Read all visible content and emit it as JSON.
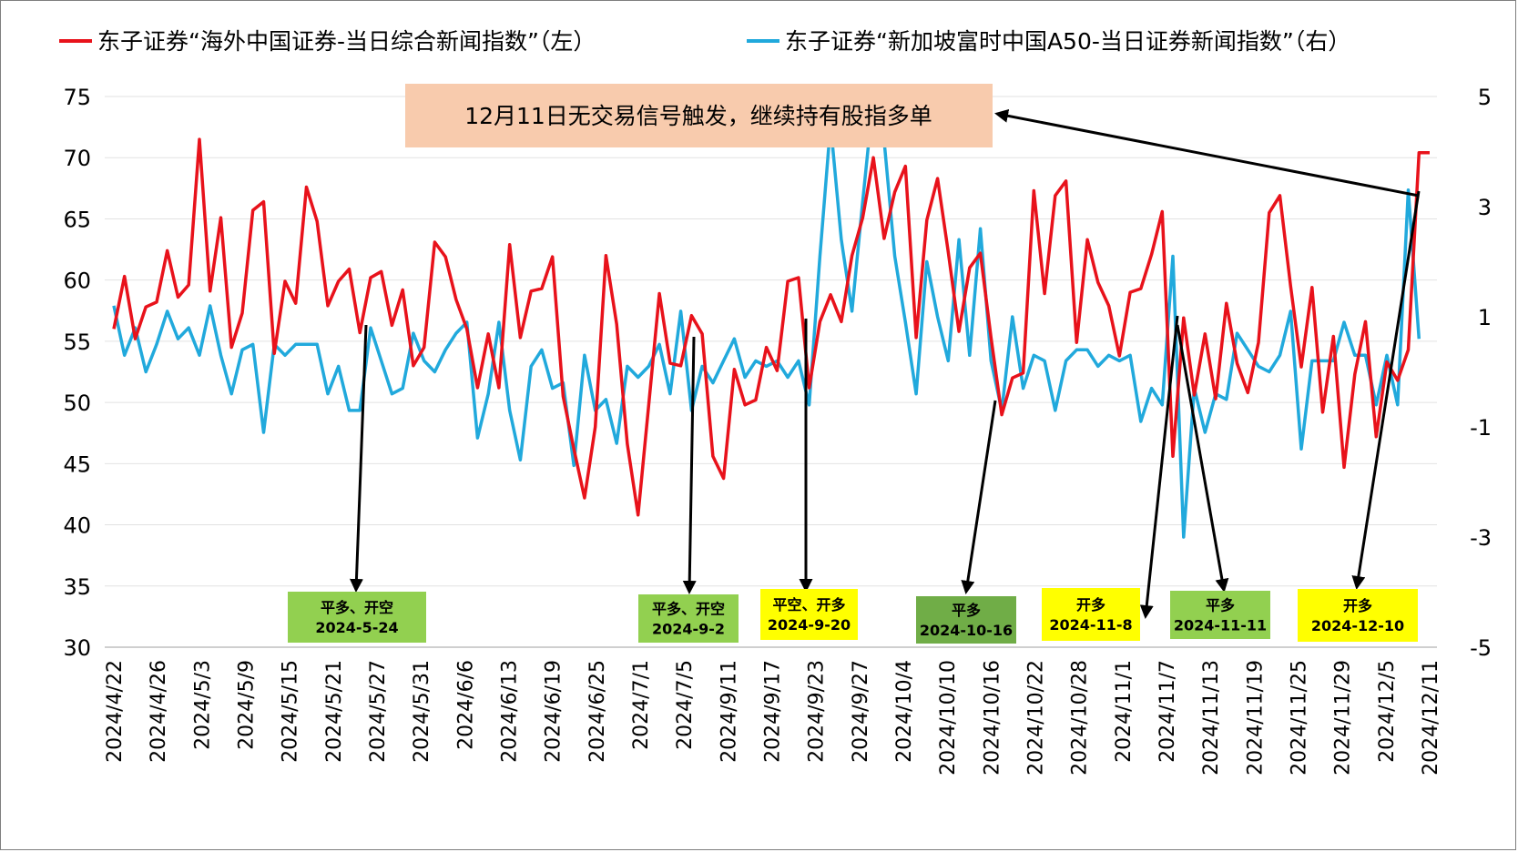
{
  "chart_data": {
    "type": "line",
    "legend": [
      {
        "name": "东子证券“海外中国证券-当日综合新闻指数”（左）",
        "color": "#e8121b",
        "axis": "left"
      },
      {
        "name": "东子证券“新加坡富时中国A50-当日证券新闻指数”（右）",
        "color": "#21a9dc",
        "axis": "right"
      }
    ],
    "legend_position": "top",
    "grid": true,
    "y_left": {
      "min": 30,
      "max": 75,
      "ticks": [
        "30",
        "35",
        "40",
        "45",
        "50",
        "55",
        "60",
        "65",
        "70",
        "75"
      ]
    },
    "y_right": {
      "min": -5,
      "max": 5,
      "ticks": [
        "-5",
        "-3",
        "-1",
        "1",
        "3",
        "5"
      ]
    },
    "x_tick_labels": [
      "2024/4/22",
      "2024/4/26",
      "2024/5/3",
      "2024/5/9",
      "2024/5/15",
      "2024/5/21",
      "2024/5/27",
      "2024/5/31",
      "2024/6/6",
      "2024/6/13",
      "2024/6/19",
      "2024/6/25",
      "2024/7/1",
      "2024/7/5",
      "2024/9/11",
      "2024/9/17",
      "2024/9/23",
      "2024/9/27",
      "2024/10/4",
      "2024/10/10",
      "2024/10/16",
      "2024/10/22",
      "2024/10/28",
      "2024/11/1",
      "2024/11/7",
      "2024/11/13",
      "2024/11/19",
      "2024/11/25",
      "2024/11/29",
      "2024/12/5",
      "2024/12/11"
    ],
    "series": [
      {
        "name": "东子证券“海外中国证券-当日综合新闻指数”（左）",
        "axis": "left",
        "values": [
          56,
          60.3,
          55.2,
          57.8,
          58.2,
          62.4,
          58.6,
          59.6,
          71.5,
          59.1,
          65.1,
          54.5,
          57.3,
          65.7,
          66.4,
          54,
          59.9,
          58.1,
          67.6,
          64.8,
          57.9,
          59.9,
          60.9,
          55.7,
          60.2,
          60.7,
          56.3,
          59.2,
          53,
          54.5,
          63.1,
          61.9,
          58.4,
          56,
          51.2,
          55.6,
          51.2,
          62.9,
          55.3,
          59.1,
          59.3,
          61.9,
          50.5,
          46.2,
          42.2,
          48,
          62,
          56.4,
          46.6,
          40.8,
          49.8,
          58.9,
          53.2,
          53,
          57.1,
          55.6,
          45.6,
          43.8,
          52.7,
          49.8,
          50.2,
          54.5,
          52.6,
          59.9,
          60.2,
          51.2,
          56.6,
          58.8,
          56.6,
          62,
          65.1,
          70,
          63.4,
          67.2,
          69.3,
          55.3,
          64.9,
          68.3,
          62.3,
          55.8,
          61,
          62.2,
          55.3,
          49,
          52,
          52.4,
          67.3,
          58.9,
          66.9,
          68.1,
          54.9,
          63.3,
          59.8,
          57.9,
          53.8,
          59,
          59.3,
          62.1,
          65.6,
          45.6,
          56.9,
          50.6,
          55.6,
          50.3,
          58.1,
          53.2,
          50.8,
          54.9,
          65.5,
          66.9,
          59.5,
          52.9,
          59.4,
          49.2,
          55.4,
          44.7,
          52.3,
          56.6,
          47.2,
          53.3,
          51.8,
          54.3,
          70.4,
          70.4
        ]
      },
      {
        "name": "东子证券“新加坡富时中国A50-当日证券新闻指数”（右）",
        "axis": "right",
        "values": [
          1.2,
          0.3,
          0.8,
          0,
          0.5,
          1.1,
          0.6,
          0.8,
          0.3,
          1.2,
          0.3,
          -0.4,
          0.4,
          0.5,
          -1.1,
          0.5,
          0.3,
          0.5,
          0.5,
          0.5,
          -0.4,
          0.1,
          -0.7,
          -0.7,
          0.8,
          0.2,
          -0.4,
          -0.3,
          0.7,
          0.2,
          0,
          0.4,
          0.7,
          0.9,
          -1.2,
          -0.4,
          0.9,
          -0.7,
          -1.6,
          0.1,
          0.4,
          -0.3,
          -0.2,
          -1.7,
          0.3,
          -0.7,
          -0.5,
          -1.3,
          0.1,
          -0.1,
          0.1,
          0.5,
          -0.4,
          1.1,
          -0.7,
          0.1,
          -0.2,
          0.2,
          0.6,
          -0.1,
          0.2,
          0.1,
          0.2,
          -0.1,
          0.2,
          -0.6,
          2.1,
          4.5,
          2.4,
          1.1,
          3.1,
          5,
          4.2,
          2.1,
          0.9,
          -0.4,
          2,
          1,
          0.2,
          2.4,
          0.3,
          2.6,
          0.2,
          -0.7,
          1,
          -0.3,
          0.3,
          0.2,
          -0.7,
          0.2,
          0.4,
          0.4,
          0.1,
          0.3,
          0.2,
          0.3,
          -0.9,
          -0.3,
          -0.6,
          2.1,
          -3,
          -0.3,
          -1.1,
          -0.4,
          -0.5,
          0.7,
          0.4,
          0.1,
          0,
          0.3,
          1.1,
          -1.4,
          0.2,
          0.2,
          0.2,
          0.9,
          0.3,
          0.3,
          -0.6,
          0.3,
          -0.6,
          3.3,
          0.6
        ]
      }
    ],
    "annotations": [
      {
        "line1": "平多、开空",
        "line2": "2024-5-24",
        "fill": "#92d050"
      },
      {
        "line1": "平多、开空",
        "line2": "2024-9-2",
        "fill": "#92d050"
      },
      {
        "line1": "平空、开多",
        "line2": "2024-9-20",
        "fill": "#ffff00"
      },
      {
        "line1": "平多",
        "line2": "2024-10-16",
        "fill": "#70ad47"
      },
      {
        "line1": "开多",
        "line2": "2024-11-8",
        "fill": "#ffff00"
      },
      {
        "line1": "平多",
        "line2": "2024-11-11",
        "fill": "#92d050"
      },
      {
        "line1": "开多",
        "line2": "2024-12-10",
        "fill": "#ffff00"
      }
    ],
    "callout": {
      "text": "12月11日无交易信号触发，继续持有股指多单",
      "fill": "#f8cbad"
    }
  }
}
